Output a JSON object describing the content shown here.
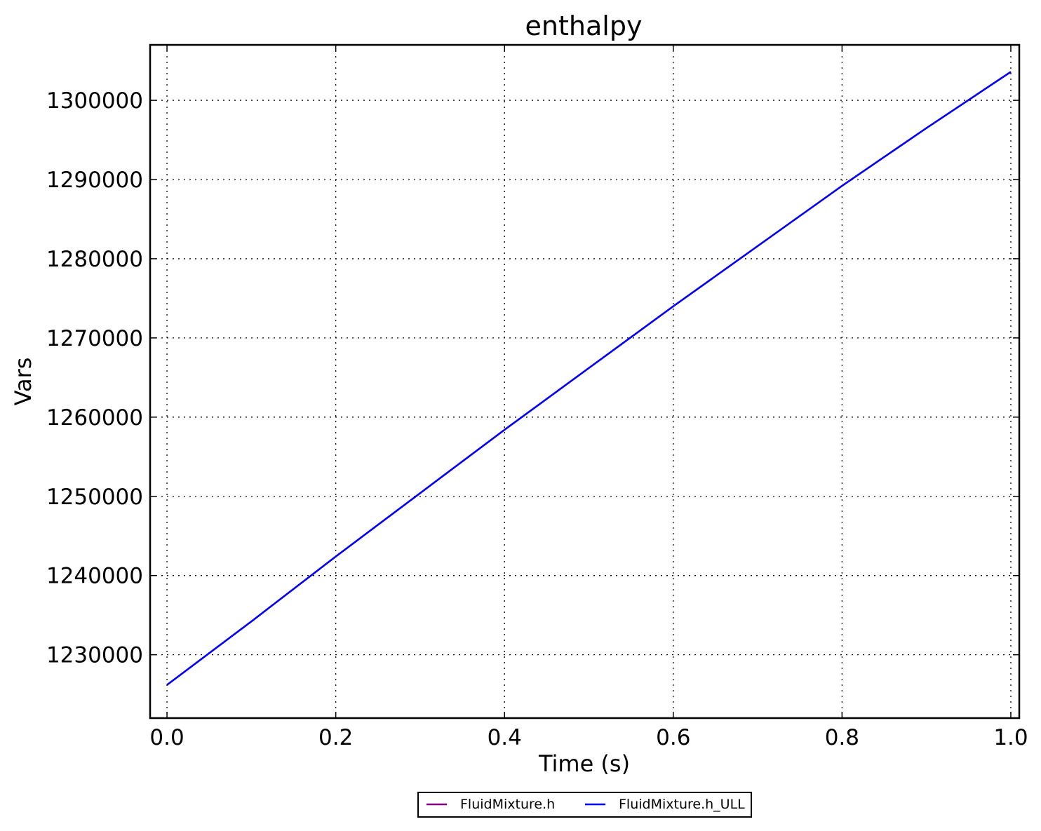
{
  "chart_data": {
    "type": "line",
    "title": "enthalpy",
    "xlabel": "Time (s)",
    "ylabel": "Vars",
    "xlim": [
      -0.02,
      1.01
    ],
    "ylim": [
      1222000,
      1307000
    ],
    "xticks": [
      0.0,
      0.2,
      0.4,
      0.6,
      0.8,
      1.0
    ],
    "xtick_labels": [
      "0.0",
      "0.2",
      "0.4",
      "0.6",
      "0.8",
      "1.0"
    ],
    "yticks": [
      1230000,
      1240000,
      1250000,
      1260000,
      1270000,
      1280000,
      1290000,
      1300000
    ],
    "ytick_labels": [
      "1230000",
      "1240000",
      "1250000",
      "1260000",
      "1270000",
      "1280000",
      "1290000",
      "1300000"
    ],
    "grid": true,
    "legend_placement": "bottom-center outside",
    "series": [
      {
        "name": "FluidMixture.h",
        "color": "#800080",
        "x": [
          0.0,
          0.1,
          0.2,
          0.3,
          0.4,
          0.5,
          0.6,
          0.7,
          0.8,
          0.9,
          1.0
        ],
        "y": [
          1226200,
          1234200,
          1242400,
          1250400,
          1258400,
          1266200,
          1274000,
          1281600,
          1289200,
          1296500,
          1303600
        ]
      },
      {
        "name": "FluidMixture.h_ULL",
        "color": "#0000ff",
        "x": [
          0.0,
          0.1,
          0.2,
          0.3,
          0.4,
          0.5,
          0.6,
          0.7,
          0.8,
          0.9,
          1.0
        ],
        "y": [
          1226200,
          1234200,
          1242400,
          1250400,
          1258400,
          1266200,
          1274000,
          1281600,
          1289200,
          1296500,
          1303600
        ]
      }
    ]
  }
}
